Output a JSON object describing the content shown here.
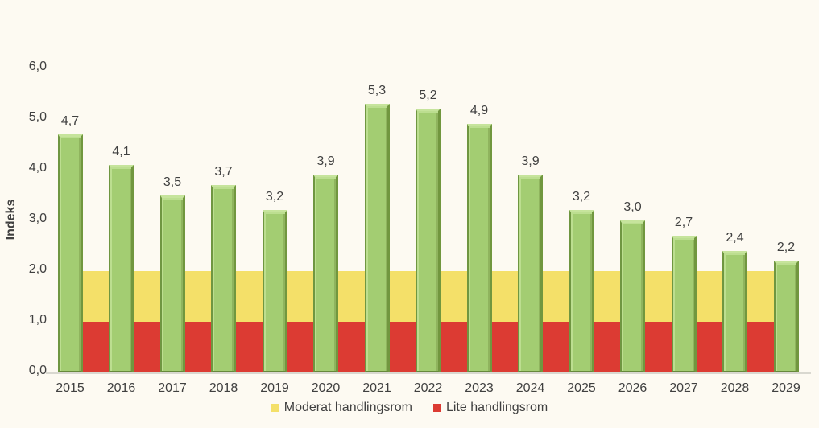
{
  "chart_data": {
    "type": "bar",
    "title": "",
    "xlabel": "",
    "ylabel": "Indeks",
    "ylim": [
      0,
      6
    ],
    "grid": false,
    "decimal_separator": ",",
    "bar_color": "#A3CD72",
    "categories": [
      "2015",
      "2016",
      "2017",
      "2018",
      "2019",
      "2020",
      "2021",
      "2022",
      "2023",
      "2024",
      "2025",
      "2026",
      "2027",
      "2028",
      "2029"
    ],
    "values": [
      4.7,
      4.1,
      3.5,
      3.7,
      3.2,
      3.9,
      5.3,
      5.2,
      4.9,
      3.9,
      3.2,
      3.0,
      2.7,
      2.4,
      2.2
    ],
    "value_labels": [
      "4,7",
      "4,1",
      "3,5",
      "3,7",
      "3,2",
      "3,9",
      "5,3",
      "5,2",
      "4,9",
      "3,9",
      "3,2",
      "3,0",
      "2,7",
      "2,4",
      "2,2"
    ],
    "yticks": [
      {
        "value": 0,
        "label": "0,0"
      },
      {
        "value": 1,
        "label": "1,0"
      },
      {
        "value": 2,
        "label": "2,0"
      },
      {
        "value": 3,
        "label": "3,0"
      },
      {
        "value": 4,
        "label": "4,0"
      },
      {
        "value": 5,
        "label": "5,0"
      },
      {
        "value": 6,
        "label": "6,0"
      }
    ],
    "bands": [
      {
        "key": "moderat",
        "label": "Moderat handlingsrom",
        "from": 1.0,
        "to": 2.0,
        "color": "#F4E069"
      },
      {
        "key": "lite",
        "label": "Lite handlingsrom",
        "from": 0.0,
        "to": 1.0,
        "color": "#DC3B33"
      }
    ],
    "legend": {
      "position": "bottom",
      "items": [
        {
          "key": "moderat",
          "label": "Moderat handlingsrom",
          "color": "#F4E069"
        },
        {
          "key": "lite",
          "label": "Lite handlingsrom",
          "color": "#DC3B33"
        }
      ]
    }
  }
}
